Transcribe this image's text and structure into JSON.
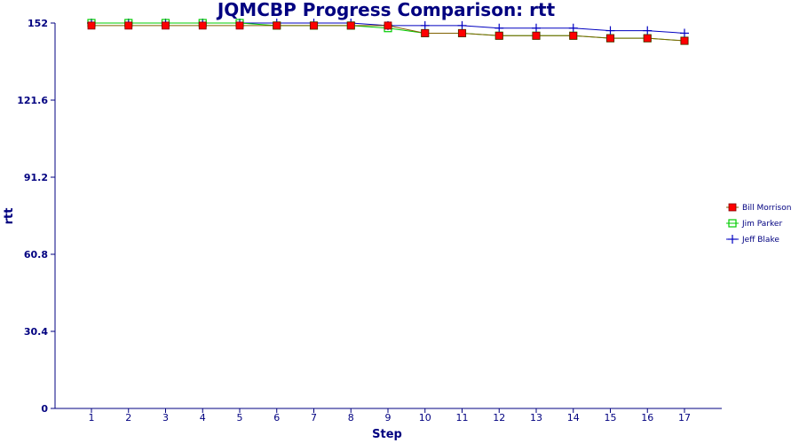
{
  "chart_data": {
    "type": "line",
    "title": "JQMCBP Progress Comparison: rtt",
    "xlabel": "Step",
    "ylabel": "rtt",
    "x": [
      1,
      2,
      3,
      4,
      5,
      6,
      7,
      8,
      9,
      10,
      11,
      12,
      13,
      14,
      15,
      16,
      17
    ],
    "ylim": [
      0,
      152
    ],
    "yticks": [
      "0",
      "30.4",
      "60.8",
      "91.2",
      "121.6",
      "152"
    ],
    "grid": false,
    "legend_position": "right",
    "series": [
      {
        "name": "Bill Morrison",
        "color": "#ff0000",
        "line_color": "#806000",
        "marker": "filled-square",
        "values": [
          151,
          151,
          151,
          151,
          151,
          151,
          151,
          151,
          151,
          148,
          148,
          147,
          147,
          147,
          146,
          146,
          145
        ]
      },
      {
        "name": "Jim Parker",
        "color": "#00cc00",
        "line_color": "#00cc00",
        "marker": "open-square",
        "values": [
          152,
          152,
          152,
          152,
          152,
          151,
          151,
          151,
          150,
          148,
          148,
          147,
          147,
          147,
          146,
          146,
          145
        ]
      },
      {
        "name": "Jeff Blake",
        "color": "#0000c0",
        "line_color": "#0000c0",
        "marker": "plus",
        "values": [
          152,
          152,
          152,
          152,
          152,
          152,
          152,
          152,
          151,
          151,
          151,
          150,
          150,
          150,
          149,
          149,
          148
        ]
      }
    ]
  }
}
